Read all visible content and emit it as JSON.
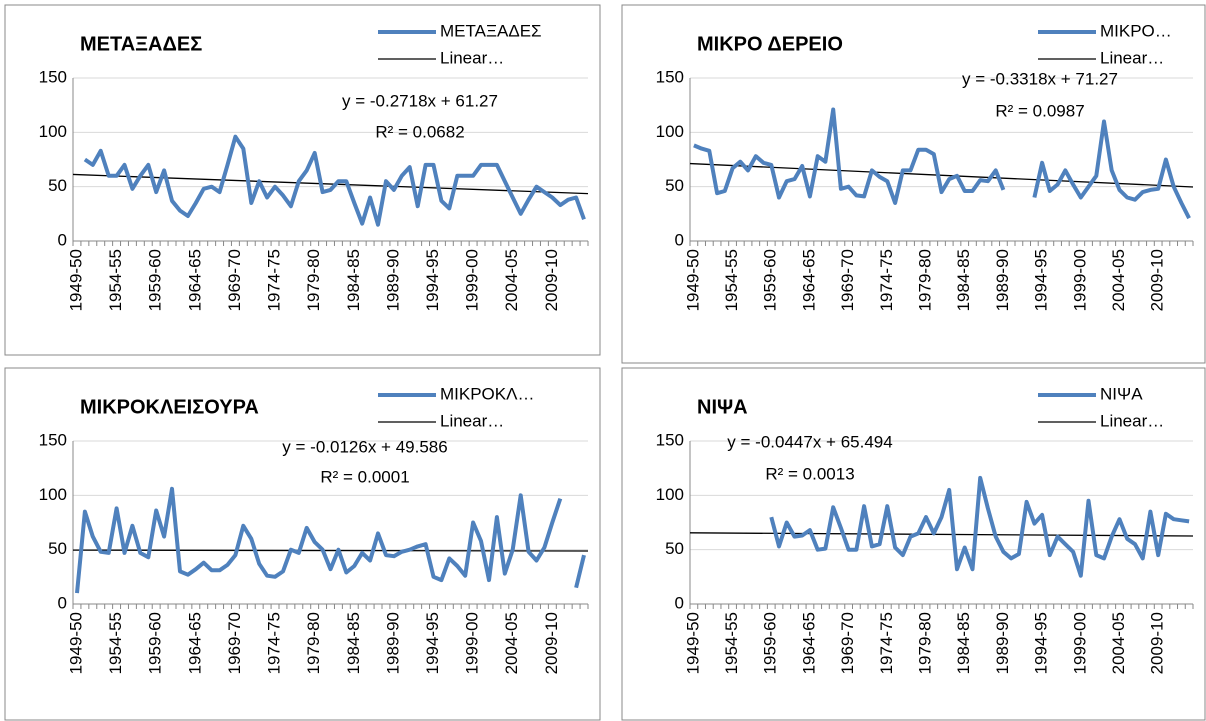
{
  "chart_data": [
    {
      "type": "line",
      "title": "ΜΕΤΑΞΑΔΕΣ",
      "categories": [
        "1949-50",
        null,
        null,
        null,
        null,
        "1954-55",
        null,
        null,
        null,
        null,
        "1959-60",
        null,
        null,
        null,
        null,
        "1964-65",
        null,
        null,
        null,
        null,
        "1969-70",
        null,
        null,
        null,
        null,
        "1974-75",
        null,
        null,
        null,
        null,
        "1979-80",
        null,
        null,
        null,
        null,
        "1984-85",
        null,
        null,
        null,
        null,
        "1989-90",
        null,
        null,
        null,
        null,
        "1994-95",
        null,
        null,
        null,
        null,
        "1999-00",
        null,
        null,
        null,
        null,
        "2004-05",
        null,
        null,
        null,
        null,
        "2009-10",
        null,
        null,
        null,
        null
      ],
      "series": [
        {
          "name": "ΜΕΤΑΞΑΔΕΣ",
          "color": "#4f81bd",
          "values": [
            null,
            75,
            70,
            83,
            60,
            60,
            70,
            48,
            60,
            70,
            45,
            65,
            37,
            28,
            23,
            35,
            48,
            50,
            45,
            70,
            96,
            85,
            35,
            55,
            40,
            50,
            42,
            32,
            55,
            65,
            81,
            45,
            47,
            55,
            55,
            35,
            16,
            40,
            15,
            55,
            47,
            60,
            68,
            32,
            70,
            70,
            37,
            30,
            60,
            60,
            60,
            70,
            70,
            70,
            55,
            40,
            25,
            38,
            50,
            45,
            40,
            33,
            38,
            40,
            20
          ]
        }
      ],
      "trendline": {
        "name": "Linear…",
        "color": "#000000",
        "slope": -0.2718,
        "intercept": 61.27,
        "equation": "y = -0.2718x + 61.27",
        "r2": "R² = 0.0682"
      },
      "ylim": [
        0,
        150
      ],
      "yticks": [
        0,
        50,
        100,
        150
      ],
      "grid": true
    },
    {
      "type": "line",
      "title": "ΜΙΚΡΟ ΔΕΡΕΙΟ",
      "categories": [
        "1949-50",
        null,
        null,
        null,
        null,
        "1954-55",
        null,
        null,
        null,
        null,
        "1959-60",
        null,
        null,
        null,
        null,
        "1964-65",
        null,
        null,
        null,
        null,
        "1969-70",
        null,
        null,
        null,
        null,
        "1974-75",
        null,
        null,
        null,
        null,
        "1979-80",
        null,
        null,
        null,
        null,
        "1984-85",
        null,
        null,
        null,
        null,
        "1989-90",
        null,
        null,
        null,
        null,
        "1994-95",
        null,
        null,
        null,
        null,
        "1999-00",
        null,
        null,
        null,
        null,
        "2004-05",
        null,
        null,
        null,
        null,
        "2009-10",
        null,
        null,
        null,
        null
      ],
      "series": [
        {
          "name": "ΜΙΚΡΟ…",
          "color": "#4f81bd",
          "values": [
            88,
            85,
            83,
            44,
            46,
            67,
            73,
            65,
            78,
            72,
            70,
            40,
            55,
            57,
            69,
            41,
            78,
            73,
            121,
            48,
            50,
            42,
            41,
            65,
            59,
            55,
            35,
            65,
            65,
            84,
            84,
            80,
            45,
            57,
            60,
            46,
            46,
            56,
            55,
            65,
            47,
            null,
            null,
            null,
            40,
            72,
            46,
            52,
            65,
            52,
            40,
            50,
            60,
            110,
            65,
            47,
            40,
            38,
            45,
            47,
            48,
            75,
            50,
            35,
            21
          ]
        }
      ],
      "trendline": {
        "name": "Linear…",
        "color": "#000000",
        "slope": -0.3318,
        "intercept": 71.27,
        "equation": "y = -0.3318x + 71.27",
        "r2": "R² = 0.0987"
      },
      "ylim": [
        0,
        150
      ],
      "yticks": [
        0,
        50,
        100,
        150
      ],
      "grid": true
    },
    {
      "type": "line",
      "title": "ΜΙΚΡΟΚΛΕΙΣΟΥΡΑ",
      "categories": [
        "1949-50",
        null,
        null,
        null,
        null,
        "1954-55",
        null,
        null,
        null,
        null,
        "1959-60",
        null,
        null,
        null,
        null,
        "1964-65",
        null,
        null,
        null,
        null,
        "1969-70",
        null,
        null,
        null,
        null,
        "1974-75",
        null,
        null,
        null,
        null,
        "1979-80",
        null,
        null,
        null,
        null,
        "1984-85",
        null,
        null,
        null,
        null,
        "1989-90",
        null,
        null,
        null,
        null,
        "1994-95",
        null,
        null,
        null,
        null,
        "1999-00",
        null,
        null,
        null,
        null,
        "2004-05",
        null,
        null,
        null,
        null,
        "2009-10",
        null,
        null,
        null,
        null
      ],
      "series": [
        {
          "name": "ΜΙΚΡΟΚΛ…",
          "color": "#4f81bd",
          "values": [
            10,
            85,
            62,
            48,
            47,
            88,
            47,
            72,
            47,
            43,
            86,
            62,
            106,
            30,
            27,
            32,
            38,
            31,
            31,
            36,
            45,
            72,
            60,
            37,
            26,
            25,
            30,
            50,
            47,
            70,
            57,
            50,
            32,
            50,
            29,
            35,
            47,
            40,
            65,
            45,
            44,
            48,
            50,
            53,
            55,
            25,
            22,
            42,
            35,
            26,
            75,
            58,
            22,
            80,
            28,
            50,
            100,
            48,
            40,
            52,
            75,
            97,
            null,
            15,
            45
          ]
        }
      ],
      "trendline": {
        "name": "Linear…",
        "color": "#000000",
        "slope": -0.0126,
        "intercept": 49.586,
        "equation": "y = -0.0126x + 49.586",
        "r2": "R² = 0.0001"
      },
      "ylim": [
        0,
        150
      ],
      "yticks": [
        0,
        50,
        100,
        150
      ],
      "grid": true
    },
    {
      "type": "line",
      "title": "ΝΙΨΑ",
      "categories": [
        "1949-50",
        null,
        null,
        null,
        null,
        "1954-55",
        null,
        null,
        null,
        null,
        "1959-60",
        null,
        null,
        null,
        null,
        "1964-65",
        null,
        null,
        null,
        null,
        "1969-70",
        null,
        null,
        null,
        null,
        "1974-75",
        null,
        null,
        null,
        null,
        "1979-80",
        null,
        null,
        null,
        null,
        "1984-85",
        null,
        null,
        null,
        null,
        "1989-90",
        null,
        null,
        null,
        null,
        "1994-95",
        null,
        null,
        null,
        null,
        "1999-00",
        null,
        null,
        null,
        null,
        "2004-05",
        null,
        null,
        null,
        null,
        "2009-10",
        null,
        null,
        null,
        null
      ],
      "series": [
        {
          "name": "ΝΙΨΑ",
          "color": "#4f81bd",
          "values": [
            null,
            null,
            null,
            null,
            null,
            null,
            null,
            null,
            null,
            null,
            80,
            53,
            75,
            62,
            63,
            68,
            50,
            51,
            89,
            70,
            50,
            50,
            90,
            53,
            55,
            90,
            52,
            45,
            62,
            65,
            80,
            65,
            80,
            105,
            32,
            52,
            32,
            116,
            88,
            62,
            48,
            42,
            46,
            94,
            74,
            82,
            45,
            62,
            55,
            48,
            26,
            95,
            45,
            42,
            62,
            78,
            60,
            55,
            42,
            85,
            45,
            83,
            78,
            77,
            76
          ]
        }
      ],
      "trendline": {
        "name": "Linear…",
        "color": "#000000",
        "slope": -0.0447,
        "intercept": 65.494,
        "equation": "y = -0.0447x + 65.494",
        "r2": "R² = 0.0013"
      },
      "ylim": [
        0,
        150
      ],
      "yticks": [
        0,
        50,
        100,
        150
      ],
      "grid": true
    }
  ]
}
